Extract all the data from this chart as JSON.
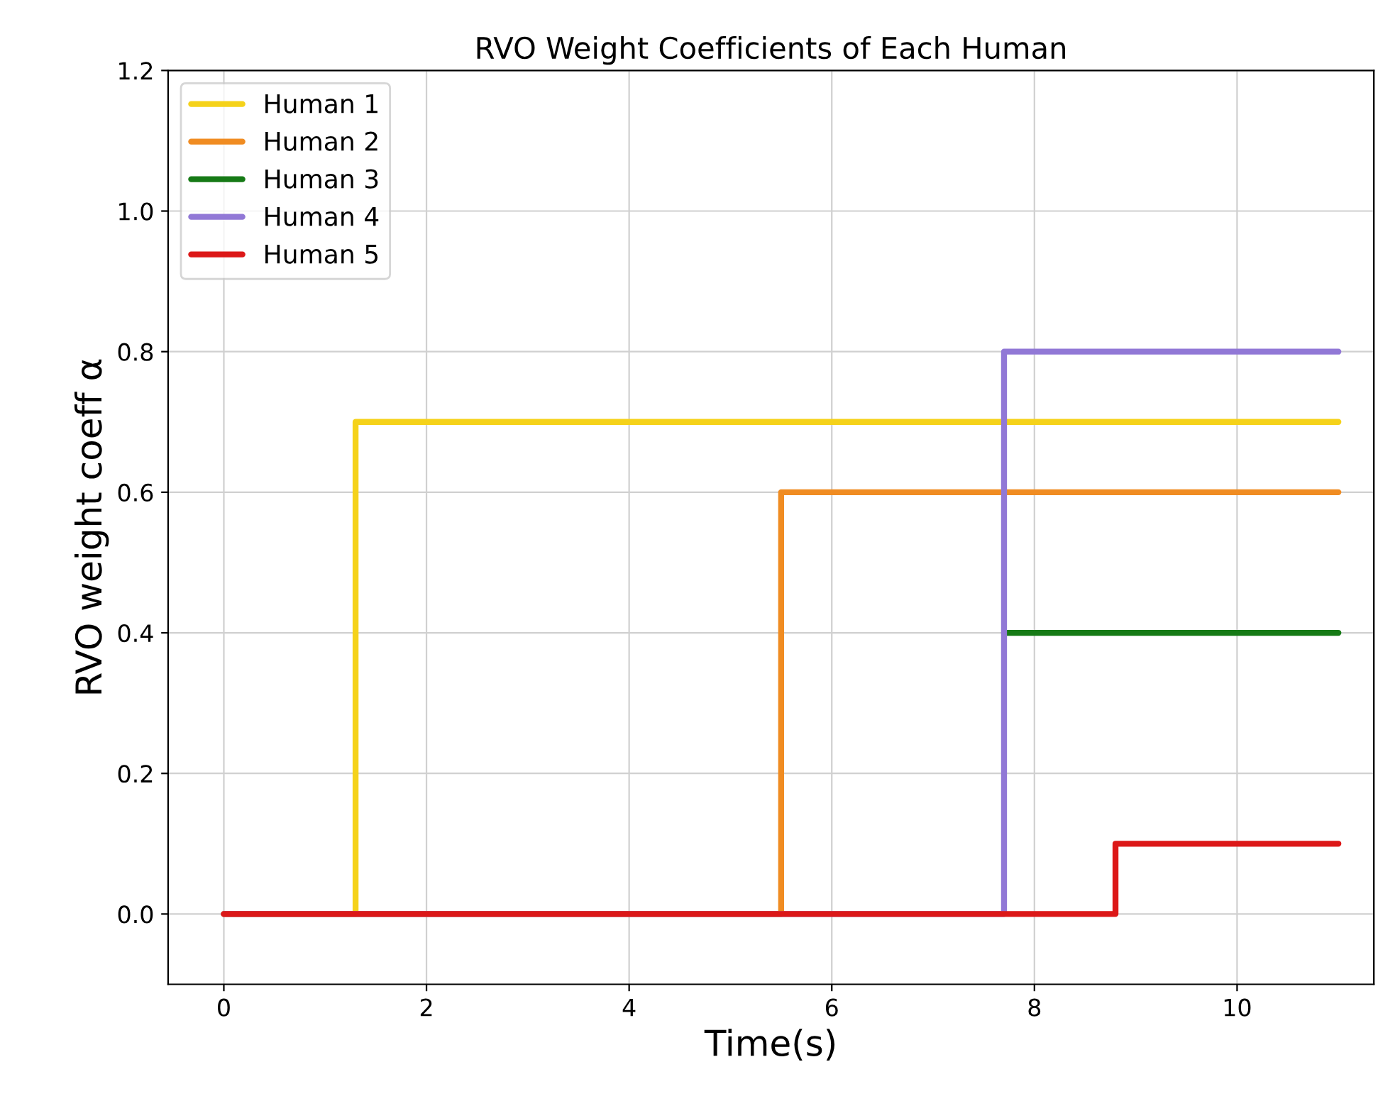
{
  "chart_data": {
    "type": "step",
    "title": "RVO Weight Coefficients of Each Human",
    "xlabel": "Time(s)",
    "ylabel": "RVO weight coeff α",
    "xlim": [
      -0.55,
      11.35
    ],
    "ylim": [
      -0.1,
      1.2
    ],
    "xticks": [
      0,
      2,
      4,
      6,
      8,
      10
    ],
    "yticks": [
      {
        "value": 0,
        "label": "0.0"
      },
      0.2,
      0.4,
      0.6,
      0.8,
      {
        "value": 1,
        "label": "1.0"
      },
      1.2
    ],
    "grid": true,
    "legend": "top left",
    "line_style": "solid",
    "series": [
      {
        "name": "Human 1",
        "color": "#f5d21a",
        "x": [
          0,
          1.3,
          11
        ],
        "values": [
          0,
          0.7,
          0.7
        ]
      },
      {
        "name": "Human 2",
        "color": "#f08c22",
        "x": [
          0,
          5.5,
          11
        ],
        "values": [
          0,
          0.6,
          0.6
        ]
      },
      {
        "name": "Human 3",
        "color": "#167a16",
        "x": [
          7.7,
          11
        ],
        "values": [
          0.4,
          0.4
        ]
      },
      {
        "name": "Human 4",
        "color": "#9178d6",
        "x": [
          0,
          7.7,
          11
        ],
        "values": [
          0,
          0.8,
          0.8
        ]
      },
      {
        "name": "Human 5",
        "color": "#dc1818",
        "x": [
          0,
          8.8,
          11
        ],
        "values": [
          0,
          0.1,
          0.1
        ]
      }
    ]
  }
}
